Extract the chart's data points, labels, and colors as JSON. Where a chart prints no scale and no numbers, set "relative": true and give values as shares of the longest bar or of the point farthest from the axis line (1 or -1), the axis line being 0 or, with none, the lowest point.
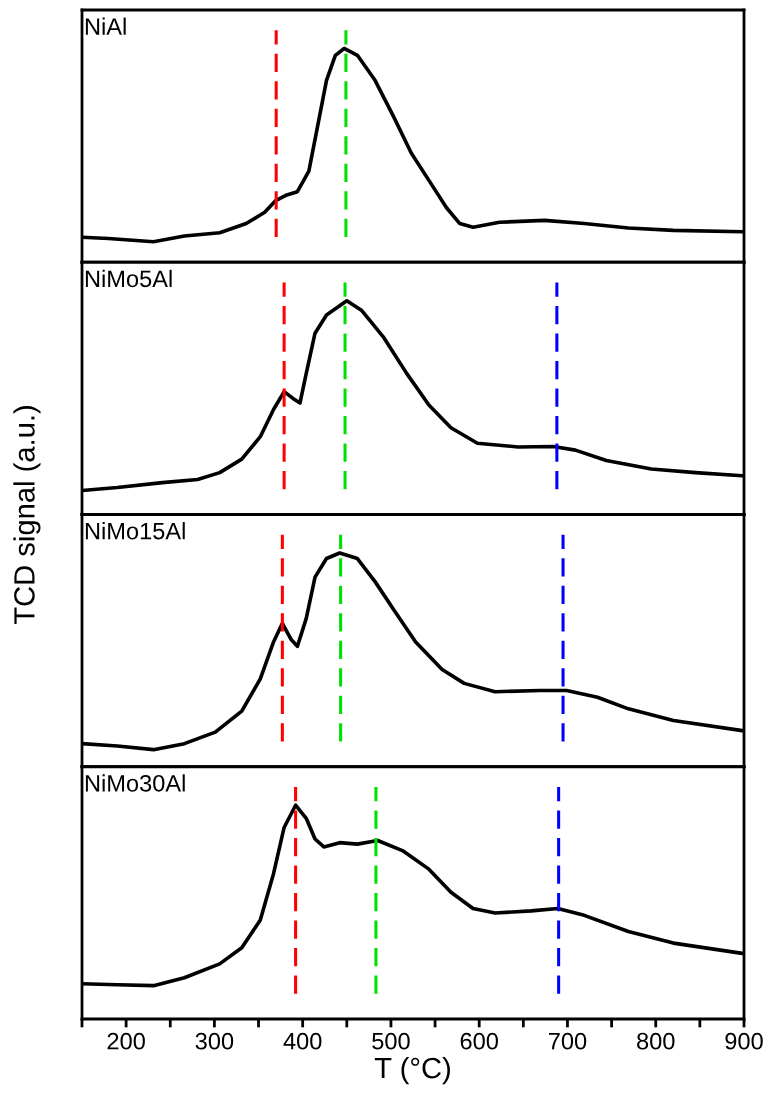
{
  "chart_data": [
    {
      "type": "line",
      "title": "NiAl",
      "ylabel": "TCD signal (a.u.)",
      "relative": true,
      "xlim": [
        150,
        900
      ],
      "tick_labels": false,
      "marker": "none",
      "line_style": "solid",
      "series": [
        {
          "color": "#000000",
          "x": [
            150,
            180,
            231,
            266,
            306,
            336,
            357,
            369,
            382,
            394,
            407,
            417,
            427,
            437,
            447,
            462,
            482,
            503,
            523,
            543,
            563,
            578,
            593,
            623,
            674,
            719,
            769,
            820,
            898
          ],
          "values": [
            0.117,
            0.111,
            0.096,
            0.123,
            0.138,
            0.181,
            0.234,
            0.287,
            0.315,
            0.33,
            0.426,
            0.638,
            0.851,
            0.968,
            1.0,
            0.968,
            0.851,
            0.681,
            0.511,
            0.383,
            0.255,
            0.181,
            0.164,
            0.187,
            0.196,
            0.181,
            0.16,
            0.149,
            0.143
          ]
        }
      ],
      "ref_lines": [
        {
          "axis": "x",
          "value": 370,
          "color": "#ff0000",
          "line_style": "dashed"
        },
        {
          "axis": "x",
          "value": 449,
          "color": "#00e000",
          "line_style": "dashed"
        }
      ]
    },
    {
      "type": "line",
      "title": "NiMo5Al",
      "relative": true,
      "xlim": [
        150,
        900
      ],
      "tick_labels": false,
      "marker": "none",
      "line_style": "solid",
      "series": [
        {
          "color": "#000000",
          "x": [
            150,
            190,
            241,
            281,
            306,
            331,
            352,
            367,
            379,
            389,
            397,
            404,
            414,
            427,
            450,
            467,
            492,
            518,
            543,
            568,
            598,
            644,
            684,
            709,
            744,
            795,
            845,
            898
          ],
          "values": [
            0.112,
            0.126,
            0.149,
            0.164,
            0.196,
            0.259,
            0.364,
            0.491,
            0.575,
            0.543,
            0.522,
            0.659,
            0.848,
            0.933,
            1.0,
            0.954,
            0.827,
            0.659,
            0.512,
            0.406,
            0.333,
            0.316,
            0.318,
            0.301,
            0.253,
            0.213,
            0.196,
            0.181
          ]
        }
      ],
      "ref_lines": [
        {
          "axis": "x",
          "value": 379,
          "color": "#ff0000",
          "line_style": "dashed"
        },
        {
          "axis": "x",
          "value": 448,
          "color": "#00e000",
          "line_style": "dashed"
        },
        {
          "axis": "x",
          "value": 688,
          "color": "#0000ff",
          "line_style": "dashed"
        }
      ]
    },
    {
      "type": "line",
      "title": "NiMo15Al",
      "relative": true,
      "xlim": [
        150,
        900
      ],
      "tick_labels": false,
      "marker": "none",
      "line_style": "solid",
      "series": [
        {
          "color": "#000000",
          "x": [
            150,
            190,
            231,
            266,
            301,
            331,
            352,
            367,
            377,
            387,
            394,
            404,
            414,
            427,
            442,
            462,
            482,
            503,
            528,
            558,
            583,
            618,
            669,
            699,
            734,
            769,
            820,
            898
          ],
          "values": [
            0.108,
            0.097,
            0.08,
            0.108,
            0.162,
            0.26,
            0.411,
            0.584,
            0.671,
            0.595,
            0.563,
            0.693,
            0.887,
            0.974,
            1.0,
            0.974,
            0.866,
            0.736,
            0.584,
            0.455,
            0.39,
            0.351,
            0.357,
            0.357,
            0.325,
            0.271,
            0.216,
            0.169
          ]
        }
      ],
      "ref_lines": [
        {
          "axis": "x",
          "value": 377,
          "color": "#ff0000",
          "line_style": "dashed"
        },
        {
          "axis": "x",
          "value": 443,
          "color": "#00e000",
          "line_style": "dashed"
        },
        {
          "axis": "x",
          "value": 695,
          "color": "#0000ff",
          "line_style": "dashed"
        }
      ]
    },
    {
      "type": "line",
      "title": "NiMo30Al",
      "xlabel": "T (°C)",
      "relative": true,
      "xlim": [
        150,
        900
      ],
      "xticks": [
        {
          "value": 150,
          "label": null
        },
        200,
        {
          "value": 250,
          "label": null
        },
        300,
        {
          "value": 350,
          "label": null
        },
        400,
        {
          "value": 450,
          "label": null
        },
        500,
        {
          "value": 550,
          "label": null
        },
        600,
        {
          "value": 650,
          "label": null
        },
        700,
        {
          "value": 750,
          "label": null
        },
        800,
        {
          "value": 850,
          "label": null
        },
        900
      ],
      "tick_labels": "x",
      "marker": "none",
      "line_style": "solid",
      "series": [
        {
          "color": "#000000",
          "x": [
            150,
            190,
            231,
            266,
            306,
            331,
            352,
            367,
            379,
            392,
            404,
            414,
            424,
            442,
            462,
            485,
            513,
            543,
            568,
            593,
            618,
            659,
            689,
            719,
            769,
            820,
            898
          ],
          "values": [
            0.165,
            0.16,
            0.156,
            0.193,
            0.258,
            0.333,
            0.463,
            0.68,
            0.896,
            1.0,
            0.939,
            0.842,
            0.805,
            0.825,
            0.818,
            0.835,
            0.788,
            0.701,
            0.593,
            0.517,
            0.496,
            0.506,
            0.517,
            0.485,
            0.409,
            0.355,
            0.307
          ]
        }
      ],
      "ref_lines": [
        {
          "axis": "x",
          "value": 392,
          "color": "#ff0000",
          "line_style": "dashed"
        },
        {
          "axis": "x",
          "value": 483,
          "color": "#00e000",
          "line_style": "dashed"
        },
        {
          "axis": "x",
          "value": 690,
          "color": "#0000ff",
          "line_style": "dashed"
        }
      ]
    }
  ]
}
